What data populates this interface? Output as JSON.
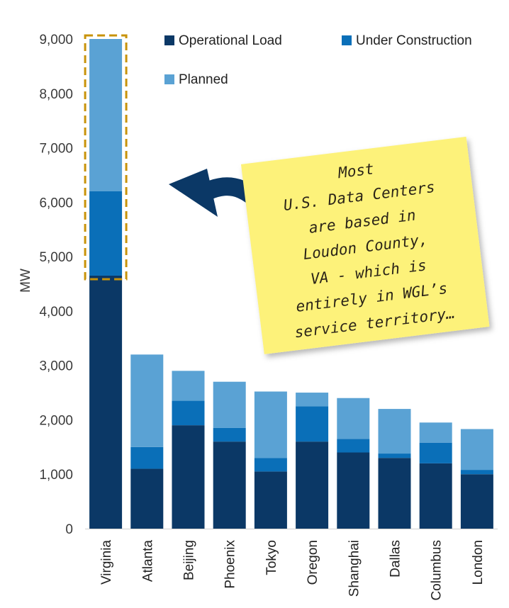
{
  "chart_data": {
    "type": "bar",
    "stacked": true,
    "categories": [
      "Virginia",
      "Atlanta",
      "Beijing",
      "Phoenix",
      "Tokyo",
      "Oregon",
      "Shanghai",
      "Dallas",
      "Columbus",
      "London"
    ],
    "series": [
      {
        "name": "Operational Load",
        "color": "#0b3866",
        "values": [
          4650,
          1100,
          1900,
          1600,
          1050,
          1600,
          1400,
          1300,
          1200,
          1000
        ]
      },
      {
        "name": "Under Construction",
        "color": "#0a6fb8",
        "values": [
          1550,
          400,
          450,
          250,
          250,
          650,
          250,
          80,
          380,
          80
        ]
      },
      {
        "name": "Planned",
        "color": "#5aa2d4",
        "values": [
          2800,
          1700,
          550,
          850,
          1220,
          250,
          750,
          820,
          370,
          750
        ]
      }
    ],
    "ylabel": "MW",
    "ylim": [
      0,
      9000
    ],
    "yticks": [
      0,
      1000,
      2000,
      3000,
      4000,
      5000,
      6000,
      7000,
      8000,
      9000
    ],
    "ytick_labels": [
      "0",
      "1,000",
      "2,000",
      "3,000",
      "4,000",
      "5,000",
      "6,000",
      "7,000",
      "8,000",
      "9,000"
    ],
    "legend_position": "top-right",
    "grid": false,
    "highlight": {
      "category": "Virginia",
      "range": [
        4650,
        9000
      ],
      "color": "#c8930a"
    },
    "annotation": {
      "lines": [
        "Most",
        "U.S. Data Centers",
        "are based in",
        "Loudon County,",
        "VA - which is",
        "entirely in WGL’s",
        "service territory…"
      ],
      "note_color": "#fdf27a",
      "arrow_color": "#0b3866"
    }
  }
}
